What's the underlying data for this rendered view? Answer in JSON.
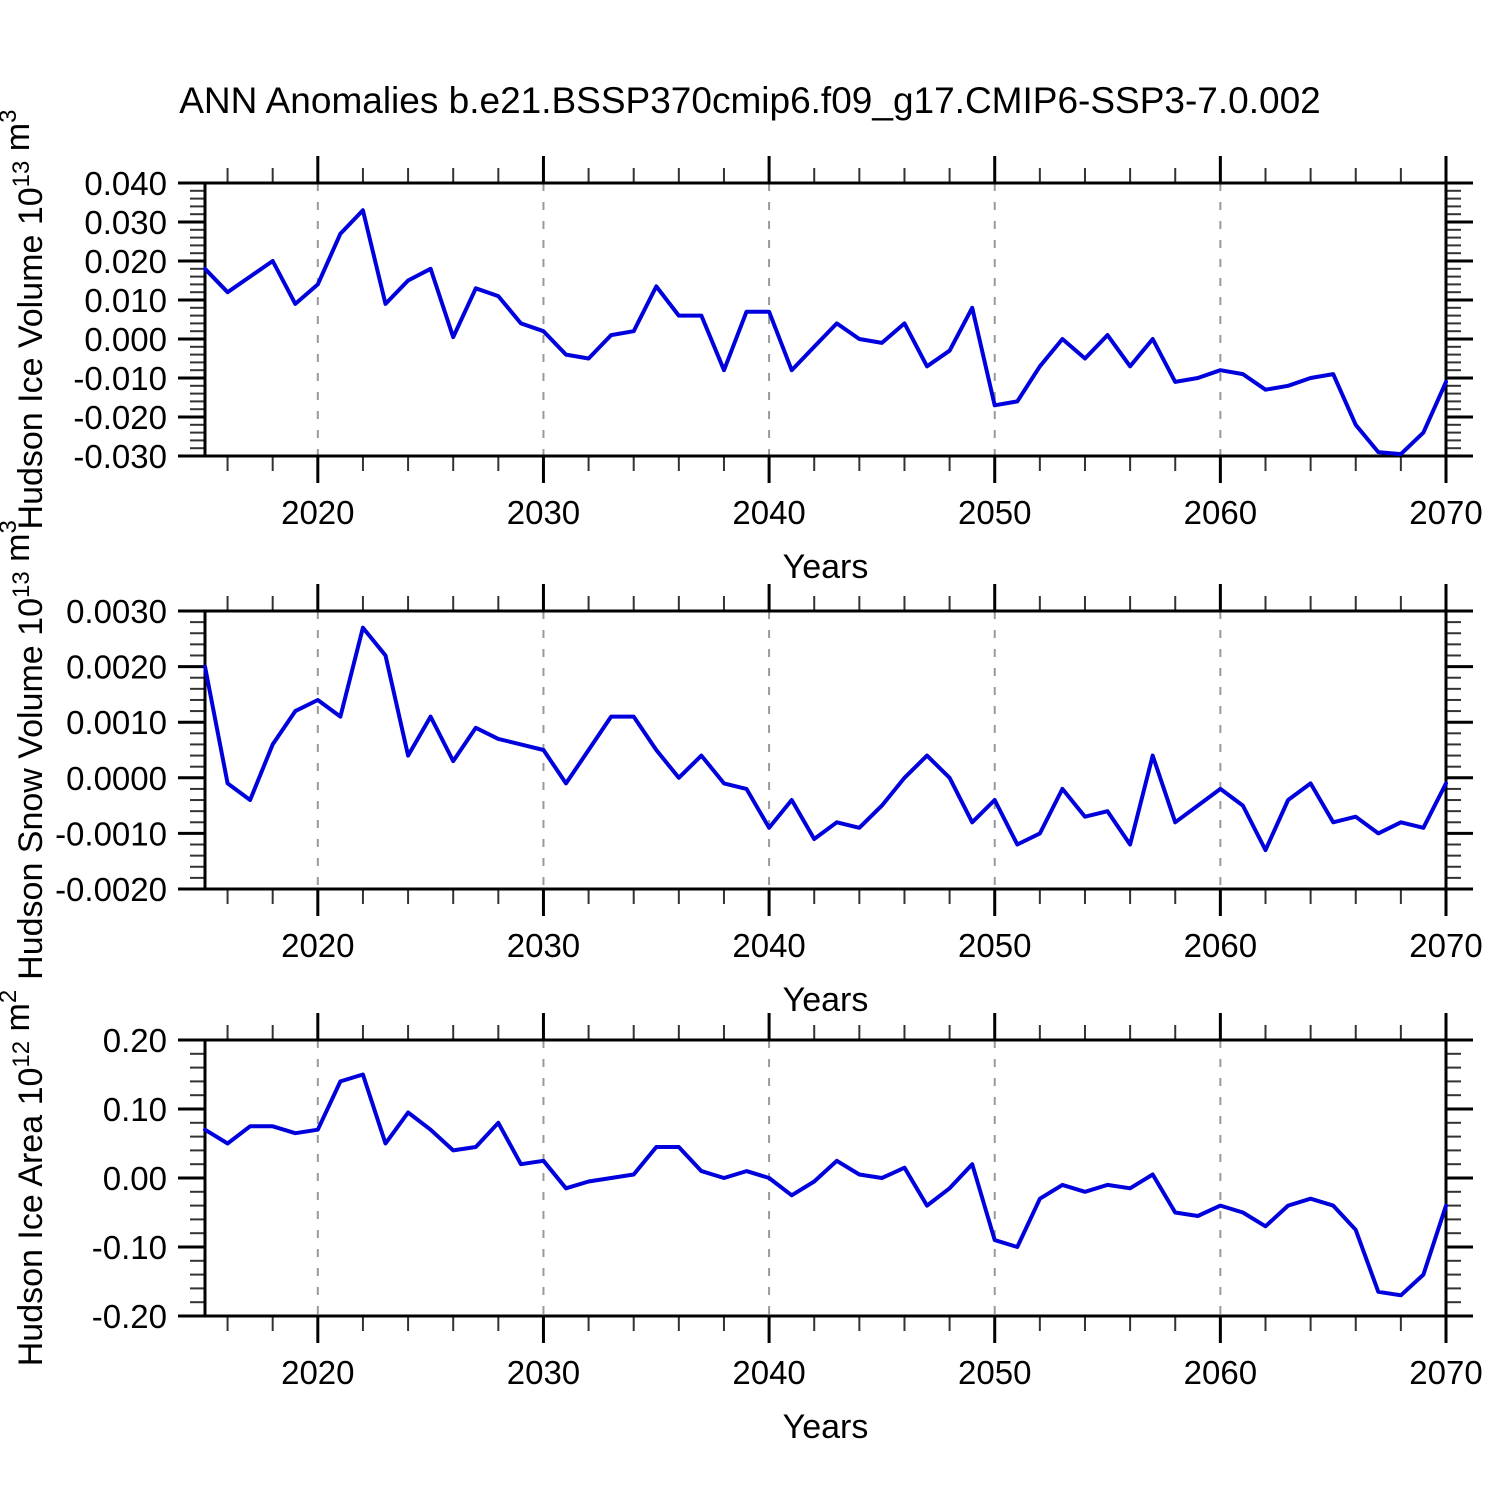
{
  "title": "ANN Anomalies b.e21.BSSP370cmip6.f09_g17.CMIP6-SSP3-7.0.002",
  "colors": {
    "series_line": "#0000dd",
    "axis": "#000000",
    "minor_tick": "#333333",
    "grid_dashed": "#999999",
    "background": "#ffffff"
  },
  "chart_data": {
    "type": "line",
    "title": "ANN Anomalies b.e21.BSSP370cmip6.f09_g17.CMIP6-SSP3-7.0.002",
    "xlabel": "Years",
    "x_range": [
      2015,
      2070
    ],
    "xtick_labels": [
      "2020",
      "2030",
      "2040",
      "2050",
      "2060",
      "2070"
    ],
    "xtick_major_values": [
      2020,
      2030,
      2040,
      2050,
      2060,
      2070
    ],
    "xtick_minor_step": 2,
    "grid_decades": [
      2020,
      2030,
      2040,
      2050,
      2060
    ],
    "grid_style": "vertical-dashed",
    "legend": "none",
    "years": [
      2015,
      2016,
      2017,
      2018,
      2019,
      2020,
      2021,
      2022,
      2023,
      2024,
      2025,
      2026,
      2027,
      2028,
      2029,
      2030,
      2031,
      2032,
      2033,
      2034,
      2035,
      2036,
      2037,
      2038,
      2039,
      2040,
      2041,
      2042,
      2043,
      2044,
      2045,
      2046,
      2047,
      2048,
      2049,
      2050,
      2051,
      2052,
      2053,
      2054,
      2055,
      2056,
      2057,
      2058,
      2059,
      2060,
      2061,
      2062,
      2063,
      2064,
      2065,
      2066,
      2067,
      2068,
      2069,
      2070
    ],
    "panels": [
      {
        "id": "ice-volume",
        "ylabel": "Hudson Ice Volume 10^13 m^3",
        "ylabel_parts": [
          {
            "text": "Hudson Ice Volume 10"
          },
          {
            "text": "13",
            "sup": true
          },
          {
            "text": " m"
          },
          {
            "text": "3",
            "sup": true
          }
        ],
        "ylim": [
          -0.03,
          0.04
        ],
        "ytick_labels": [
          "0.040",
          "0.030",
          "0.020",
          "0.010",
          "0.000",
          "-0.010",
          "-0.020",
          "-0.030"
        ],
        "ytick_major_step": 0.01,
        "ytick_minor_step": 0.002,
        "ytick_decimals": 3,
        "values": [
          0.018,
          0.012,
          0.016,
          0.02,
          0.009,
          0.014,
          0.027,
          0.033,
          0.009,
          0.015,
          0.018,
          0.0005,
          0.013,
          0.011,
          0.004,
          0.002,
          -0.004,
          -0.005,
          0.001,
          0.002,
          0.0135,
          0.006,
          0.006,
          -0.008,
          0.007,
          0.007,
          -0.008,
          -0.002,
          0.004,
          0.0,
          -0.001,
          0.004,
          -0.007,
          -0.003,
          0.008,
          -0.017,
          -0.016,
          -0.007,
          0.0,
          -0.005,
          0.001,
          -0.007,
          0.0,
          -0.011,
          -0.01,
          -0.008,
          -0.009,
          -0.013,
          -0.012,
          -0.01,
          -0.009,
          -0.022,
          -0.029,
          -0.0295,
          -0.024,
          -0.011
        ]
      },
      {
        "id": "snow-volume",
        "ylabel": "Hudson Snow Volume 10^13 m^3",
        "ylabel_parts": [
          {
            "text": "Hudson Snow Volume 10"
          },
          {
            "text": "13",
            "sup": true
          },
          {
            "text": " m"
          },
          {
            "text": "3",
            "sup": true
          }
        ],
        "ylim": [
          -0.002,
          0.003
        ],
        "ytick_labels": [
          "0.0030",
          "0.0020",
          "0.0010",
          "0.0000",
          "-0.0010",
          "-0.0020"
        ],
        "ytick_major_step": 0.001,
        "ytick_minor_step": 0.0002,
        "ytick_decimals": 4,
        "values": [
          0.002,
          -0.0001,
          -0.0004,
          0.0006,
          0.0012,
          0.0014,
          0.0011,
          0.0027,
          0.0022,
          0.0004,
          0.0011,
          0.0003,
          0.0009,
          0.0007,
          0.0006,
          0.0005,
          -0.0001,
          0.0005,
          0.0011,
          0.0011,
          0.0005,
          0.0,
          0.0004,
          -0.0001,
          -0.0002,
          -0.0009,
          -0.0004,
          -0.0011,
          -0.0008,
          -0.0009,
          -0.0005,
          0.0,
          0.0004,
          0.0,
          -0.0008,
          -0.0004,
          -0.0012,
          -0.001,
          -0.0002,
          -0.0007,
          -0.0006,
          -0.0012,
          0.0004,
          -0.0008,
          -0.0005,
          -0.0002,
          -0.0005,
          -0.0013,
          -0.0004,
          -0.0001,
          -0.0008,
          -0.0007,
          -0.001,
          -0.0008,
          -0.0009,
          -0.0001
        ]
      },
      {
        "id": "ice-area",
        "ylabel": "Hudson Ice Area 10^12 m^2",
        "ylabel_parts": [
          {
            "text": "Hudson Ice Area 10"
          },
          {
            "text": "12",
            "sup": true
          },
          {
            "text": " m"
          },
          {
            "text": "2",
            "sup": true
          }
        ],
        "ylim": [
          -0.2,
          0.2
        ],
        "ytick_labels": [
          "0.20",
          "0.10",
          "0.00",
          "-0.10",
          "-0.20"
        ],
        "ytick_major_step": 0.1,
        "ytick_minor_step": 0.02,
        "ytick_decimals": 2,
        "values": [
          0.07,
          0.05,
          0.075,
          0.075,
          0.065,
          0.07,
          0.14,
          0.15,
          0.05,
          0.095,
          0.07,
          0.04,
          0.045,
          0.08,
          0.02,
          0.025,
          -0.015,
          -0.005,
          0.0,
          0.005,
          0.045,
          0.045,
          0.01,
          0.0,
          0.01,
          0.0,
          -0.025,
          -0.005,
          0.025,
          0.005,
          0.0,
          0.015,
          -0.04,
          -0.015,
          0.02,
          -0.09,
          -0.1,
          -0.03,
          -0.01,
          -0.02,
          -0.01,
          -0.015,
          0.005,
          -0.05,
          -0.055,
          -0.04,
          -0.05,
          -0.07,
          -0.04,
          -0.03,
          -0.04,
          -0.075,
          -0.165,
          -0.17,
          -0.14,
          -0.04
        ]
      }
    ]
  }
}
